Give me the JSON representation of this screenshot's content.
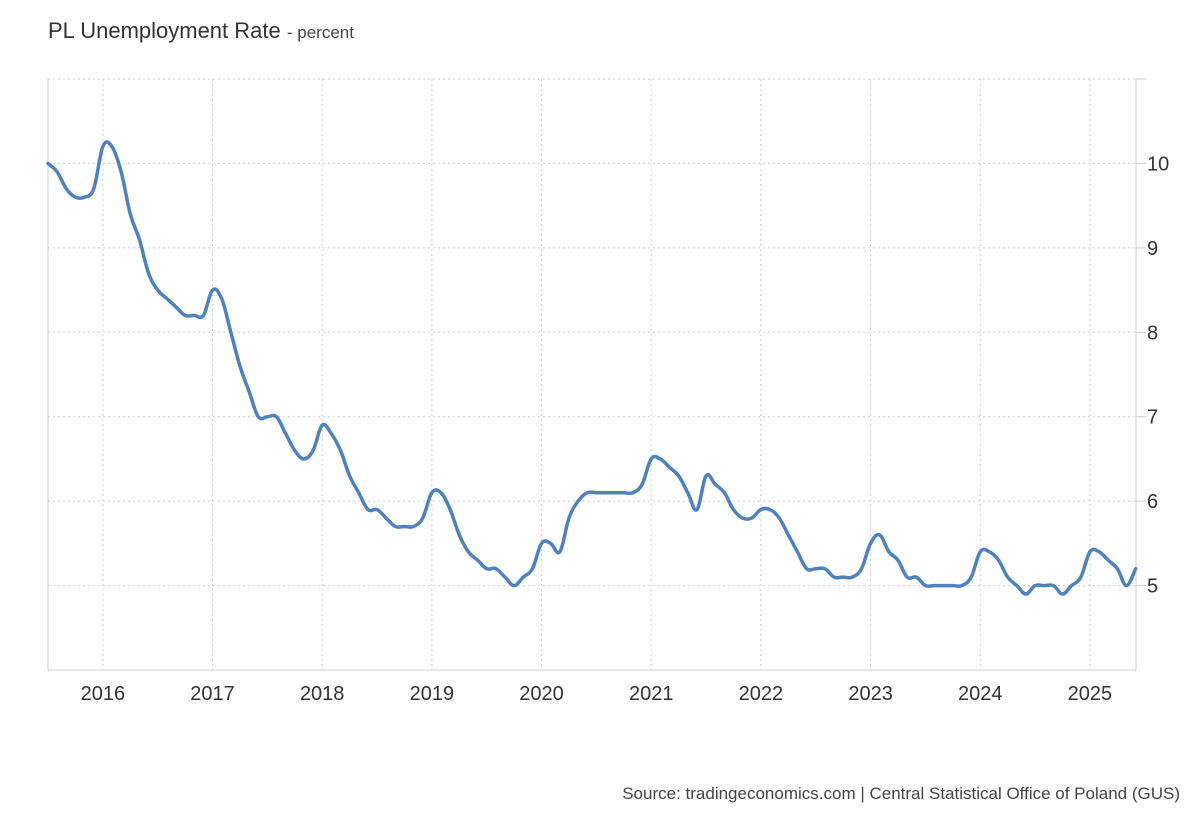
{
  "header": {
    "title": "PL Unemployment Rate",
    "unit": "- percent"
  },
  "footer": {
    "source": "Source: tradingeconomics.com | Central Statistical Office of Poland (GUS)"
  },
  "chart_data": {
    "type": "line",
    "line_color": "#4f81bd",
    "grid": true,
    "xlim": [
      2015.5,
      2025.42
    ],
    "ylim": [
      4,
      11
    ],
    "x_ticks": [
      2016,
      2017,
      2018,
      2019,
      2020,
      2021,
      2022,
      2023,
      2024,
      2025
    ],
    "x_tick_labels": [
      "2016",
      "2017",
      "2018",
      "2019",
      "2020",
      "2021",
      "2022",
      "2023",
      "2024",
      "2025"
    ],
    "y_ticks": [
      5,
      6,
      7,
      8,
      9,
      10
    ],
    "y_tick_labels": [
      "5",
      "6",
      "7",
      "8",
      "9",
      "10"
    ],
    "series": [
      {
        "x": [
          2015.5,
          2015.583,
          2015.667,
          2015.75,
          2015.833,
          2015.917,
          2016.0,
          2016.083,
          2016.167,
          2016.25,
          2016.333,
          2016.417,
          2016.5,
          2016.583,
          2016.667,
          2016.75,
          2016.833,
          2016.917,
          2017.0,
          2017.083,
          2017.167,
          2017.25,
          2017.333,
          2017.417,
          2017.5,
          2017.583,
          2017.667,
          2017.75,
          2017.833,
          2017.917,
          2018.0,
          2018.083,
          2018.167,
          2018.25,
          2018.333,
          2018.417,
          2018.5,
          2018.583,
          2018.667,
          2018.75,
          2018.833,
          2018.917,
          2019.0,
          2019.083,
          2019.167,
          2019.25,
          2019.333,
          2019.417,
          2019.5,
          2019.583,
          2019.667,
          2019.75,
          2019.833,
          2019.917,
          2020.0,
          2020.083,
          2020.167,
          2020.25,
          2020.333,
          2020.417,
          2020.5,
          2020.583,
          2020.667,
          2020.75,
          2020.833,
          2020.917,
          2021.0,
          2021.083,
          2021.167,
          2021.25,
          2021.333,
          2021.417,
          2021.5,
          2021.583,
          2021.667,
          2021.75,
          2021.833,
          2021.917,
          2022.0,
          2022.083,
          2022.167,
          2022.25,
          2022.333,
          2022.417,
          2022.5,
          2022.583,
          2022.667,
          2022.75,
          2022.833,
          2022.917,
          2023.0,
          2023.083,
          2023.167,
          2023.25,
          2023.333,
          2023.417,
          2023.5,
          2023.583,
          2023.667,
          2023.75,
          2023.833,
          2023.917,
          2024.0,
          2024.083,
          2024.167,
          2024.25,
          2024.333,
          2024.417,
          2024.5,
          2024.583,
          2024.667,
          2024.75,
          2024.833,
          2024.917,
          2025.0,
          2025.083,
          2025.167,
          2025.25,
          2025.333,
          2025.417
        ],
        "values": [
          10.0,
          9.9,
          9.7,
          9.6,
          9.6,
          9.7,
          10.2,
          10.2,
          9.9,
          9.4,
          9.1,
          8.7,
          8.5,
          8.4,
          8.3,
          8.2,
          8.2,
          8.2,
          8.5,
          8.4,
          8.0,
          7.6,
          7.3,
          7.0,
          7.0,
          7.0,
          6.8,
          6.6,
          6.5,
          6.6,
          6.9,
          6.8,
          6.6,
          6.3,
          6.1,
          5.9,
          5.9,
          5.8,
          5.7,
          5.7,
          5.7,
          5.8,
          6.1,
          6.1,
          5.9,
          5.6,
          5.4,
          5.3,
          5.2,
          5.2,
          5.1,
          5.0,
          5.1,
          5.2,
          5.5,
          5.5,
          5.4,
          5.8,
          6.0,
          6.1,
          6.1,
          6.1,
          6.1,
          6.1,
          6.1,
          6.2,
          6.5,
          6.5,
          6.4,
          6.3,
          6.1,
          5.9,
          6.3,
          6.2,
          6.1,
          5.9,
          5.8,
          5.8,
          5.9,
          5.9,
          5.8,
          5.6,
          5.4,
          5.2,
          5.2,
          5.2,
          5.1,
          5.1,
          5.1,
          5.2,
          5.5,
          5.6,
          5.4,
          5.3,
          5.1,
          5.1,
          5.0,
          5.0,
          5.0,
          5.0,
          5.0,
          5.1,
          5.4,
          5.4,
          5.3,
          5.1,
          5.0,
          4.9,
          5.0,
          5.0,
          5.0,
          4.9,
          5.0,
          5.1,
          5.4,
          5.4,
          5.3,
          5.2,
          5.0,
          5.2
        ]
      }
    ]
  }
}
